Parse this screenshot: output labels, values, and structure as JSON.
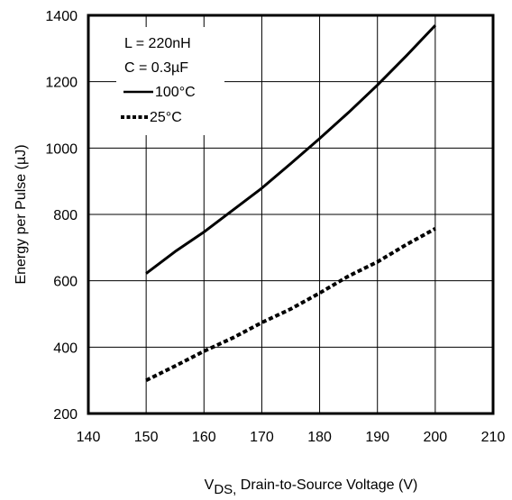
{
  "chart_data": {
    "type": "line",
    "xlim": [
      140,
      210
    ],
    "ylim": [
      200,
      1400
    ],
    "x_ticks": [
      140,
      150,
      160,
      170,
      180,
      190,
      200,
      210
    ],
    "y_ticks": [
      200,
      400,
      600,
      800,
      1000,
      1200,
      1400
    ],
    "grid": true,
    "xlabel_main": "V",
    "xlabel_sub": "DS,",
    "xlabel_rest": " Drain-to-Source Voltage (V)",
    "ylabel": "Energy per Pulse (µJ)",
    "annotations": [
      "L = 220nH",
      "C = 0.3µF"
    ],
    "legend_position": "top-left",
    "series": [
      {
        "name": "100°C",
        "style": "solid",
        "x": [
          150,
          155,
          160,
          165,
          170,
          175,
          180,
          185,
          190,
          195,
          200
        ],
        "y": [
          622,
          688,
          747,
          813,
          879,
          953,
          1029,
          1107,
          1190,
          1278,
          1370
        ]
      },
      {
        "name": "25°C",
        "style": "dotted",
        "x": [
          150,
          155,
          160,
          165,
          170,
          175,
          180,
          185,
          190,
          195,
          200
        ],
        "y": [
          300,
          343,
          388,
          428,
          474,
          515,
          563,
          614,
          657,
          709,
          757
        ]
      }
    ]
  }
}
